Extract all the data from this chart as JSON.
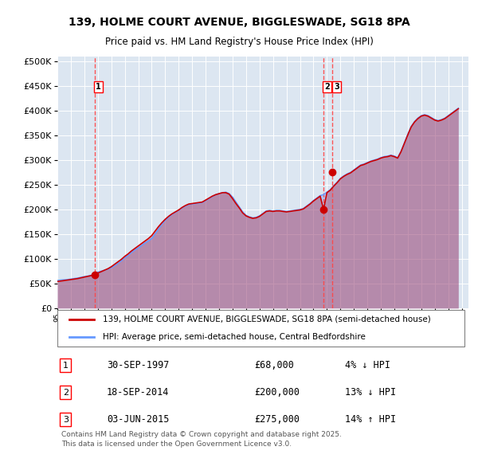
{
  "title": "139, HOLME COURT AVENUE, BIGGLESWADE, SG18 8PA",
  "subtitle": "Price paid vs. HM Land Registry's House Price Index (HPI)",
  "legend_line1": "139, HOLME COURT AVENUE, BIGGLESWADE, SG18 8PA (semi-detached house)",
  "legend_line2": "HPI: Average price, semi-detached house, Central Bedfordshire",
  "footer": "Contains HM Land Registry data © Crown copyright and database right 2025.\nThis data is licensed under the Open Government Licence v3.0.",
  "transactions": [
    {
      "num": 1,
      "date": "30-SEP-1997",
      "price": 68000,
      "hpi_diff": "4% ↓ HPI",
      "x": 1997.75
    },
    {
      "num": 2,
      "date": "18-SEP-2014",
      "price": 200000,
      "hpi_diff": "13% ↓ HPI",
      "x": 2014.72
    },
    {
      "num": 3,
      "date": "03-JUN-2015",
      "price": 275000,
      "hpi_diff": "14% ↑ HPI",
      "x": 2015.42
    }
  ],
  "hpi_color": "#6699ff",
  "price_color": "#cc0000",
  "vline_color": "#ff4444",
  "marker_color": "#cc0000",
  "background_color": "#dce6f1",
  "plot_bg_color": "#dce6f1",
  "ylim": [
    0,
    510000
  ],
  "xlim": [
    1995,
    2025.5
  ],
  "yticks": [
    0,
    50000,
    100000,
    150000,
    200000,
    250000,
    300000,
    350000,
    400000,
    450000,
    500000
  ],
  "ytick_labels": [
    "£0",
    "£50K",
    "£100K",
    "£150K",
    "£200K",
    "£250K",
    "£300K",
    "£350K",
    "£400K",
    "£450K",
    "£500K"
  ],
  "hpi_data_x": [
    1995.0,
    1995.25,
    1995.5,
    1995.75,
    1996.0,
    1996.25,
    1996.5,
    1996.75,
    1997.0,
    1997.25,
    1997.5,
    1997.75,
    1998.0,
    1998.25,
    1998.5,
    1998.75,
    1999.0,
    1999.25,
    1999.5,
    1999.75,
    2000.0,
    2000.25,
    2000.5,
    2000.75,
    2001.0,
    2001.25,
    2001.5,
    2001.75,
    2002.0,
    2002.25,
    2002.5,
    2002.75,
    2003.0,
    2003.25,
    2003.5,
    2003.75,
    2004.0,
    2004.25,
    2004.5,
    2004.75,
    2005.0,
    2005.25,
    2005.5,
    2005.75,
    2006.0,
    2006.25,
    2006.5,
    2006.75,
    2007.0,
    2007.25,
    2007.5,
    2007.75,
    2008.0,
    2008.25,
    2008.5,
    2008.75,
    2009.0,
    2009.25,
    2009.5,
    2009.75,
    2010.0,
    2010.25,
    2010.5,
    2010.75,
    2011.0,
    2011.25,
    2011.5,
    2011.75,
    2012.0,
    2012.25,
    2012.5,
    2012.75,
    2013.0,
    2013.25,
    2013.5,
    2013.75,
    2014.0,
    2014.25,
    2014.5,
    2014.75,
    2015.0,
    2015.25,
    2015.5,
    2015.75,
    2016.0,
    2016.25,
    2016.5,
    2016.75,
    2017.0,
    2017.25,
    2017.5,
    2017.75,
    2018.0,
    2018.25,
    2018.5,
    2018.75,
    2019.0,
    2019.25,
    2019.5,
    2019.75,
    2020.0,
    2020.25,
    2020.5,
    2020.75,
    2021.0,
    2021.25,
    2021.5,
    2021.75,
    2022.0,
    2022.25,
    2022.5,
    2022.75,
    2023.0,
    2023.25,
    2023.5,
    2023.75,
    2024.0,
    2024.25,
    2024.5,
    2024.75
  ],
  "hpi_data_y": [
    56000,
    57000,
    57500,
    58000,
    59000,
    60000,
    61000,
    62500,
    64000,
    65000,
    66500,
    70000,
    73000,
    75000,
    77000,
    79000,
    82000,
    86000,
    91000,
    96000,
    102000,
    107000,
    113000,
    118000,
    122000,
    127000,
    132000,
    136000,
    141000,
    150000,
    160000,
    170000,
    178000,
    184000,
    190000,
    194000,
    198000,
    203000,
    207000,
    210000,
    211000,
    212000,
    213000,
    214000,
    218000,
    222000,
    226000,
    230000,
    232000,
    234000,
    235000,
    232000,
    225000,
    215000,
    205000,
    195000,
    188000,
    185000,
    183000,
    184000,
    187000,
    192000,
    197000,
    198000,
    197000,
    198000,
    198000,
    197000,
    196000,
    197000,
    198000,
    199000,
    200000,
    202000,
    207000,
    212000,
    218000,
    223000,
    228000,
    230000,
    235000,
    240000,
    248000,
    255000,
    263000,
    268000,
    272000,
    275000,
    280000,
    285000,
    290000,
    292000,
    295000,
    298000,
    300000,
    302000,
    305000,
    307000,
    308000,
    310000,
    308000,
    305000,
    318000,
    335000,
    352000,
    368000,
    378000,
    385000,
    390000,
    392000,
    390000,
    386000,
    382000,
    380000,
    382000,
    385000,
    390000,
    395000,
    400000,
    405000
  ],
  "price_data_x": [
    1995.0,
    1995.25,
    1995.5,
    1995.75,
    1996.0,
    1996.25,
    1996.5,
    1996.75,
    1997.0,
    1997.25,
    1997.5,
    1997.75,
    1998.0,
    1998.25,
    1998.5,
    1998.75,
    1999.0,
    1999.25,
    1999.5,
    1999.75,
    2000.0,
    2000.25,
    2000.5,
    2000.75,
    2001.0,
    2001.25,
    2001.5,
    2001.75,
    2002.0,
    2002.25,
    2002.5,
    2002.75,
    2003.0,
    2003.25,
    2003.5,
    2003.75,
    2004.0,
    2004.25,
    2004.5,
    2004.75,
    2005.0,
    2005.25,
    2005.5,
    2005.75,
    2006.0,
    2006.25,
    2006.5,
    2006.75,
    2007.0,
    2007.25,
    2007.5,
    2007.75,
    2008.0,
    2008.25,
    2008.5,
    2008.75,
    2009.0,
    2009.25,
    2009.5,
    2009.75,
    2010.0,
    2010.25,
    2010.5,
    2010.75,
    2011.0,
    2011.25,
    2011.5,
    2011.75,
    2012.0,
    2012.25,
    2012.5,
    2012.75,
    2013.0,
    2013.25,
    2013.5,
    2013.75,
    2014.0,
    2014.25,
    2014.5,
    2014.75,
    2015.0,
    2015.25,
    2015.5,
    2015.75,
    2016.0,
    2016.25,
    2016.5,
    2016.75,
    2017.0,
    2017.25,
    2017.5,
    2017.75,
    2018.0,
    2018.25,
    2018.5,
    2018.75,
    2019.0,
    2019.25,
    2019.5,
    2019.75,
    2020.0,
    2020.25,
    2020.5,
    2020.75,
    2021.0,
    2021.25,
    2021.5,
    2021.75,
    2022.0,
    2022.25,
    2022.5,
    2022.75,
    2023.0,
    2023.25,
    2023.5,
    2023.75,
    2024.0,
    2024.25,
    2024.5,
    2024.75
  ],
  "price_data_y": [
    54000,
    55000,
    56000,
    57000,
    58000,
    59000,
    60000,
    61500,
    63000,
    64500,
    66000,
    68000,
    71000,
    74000,
    77000,
    80000,
    84000,
    89000,
    94000,
    99000,
    105000,
    110000,
    116000,
    121000,
    126000,
    131000,
    136000,
    141000,
    147000,
    156000,
    165000,
    173000,
    180000,
    186000,
    191000,
    195000,
    199000,
    204000,
    208000,
    211000,
    212000,
    213000,
    214000,
    215000,
    219000,
    223000,
    227000,
    230000,
    232000,
    234000,
    234000,
    231000,
    222000,
    212000,
    203000,
    193000,
    187000,
    184000,
    182000,
    183000,
    186000,
    191000,
    196000,
    197000,
    196000,
    197000,
    197000,
    196000,
    195000,
    196000,
    197000,
    198000,
    199000,
    201000,
    206000,
    211000,
    217000,
    222000,
    227000,
    200000,
    234000,
    239000,
    247000,
    254000,
    262000,
    267000,
    271000,
    274000,
    279000,
    284000,
    289000,
    291000,
    294000,
    297000,
    299000,
    301000,
    304000,
    306000,
    307000,
    309000,
    307000,
    304000,
    317000,
    334000,
    351000,
    367000,
    377000,
    384000,
    389000,
    391000,
    389000,
    385000,
    381000,
    379000,
    381000,
    384000,
    389000,
    394000,
    399000,
    404000
  ]
}
